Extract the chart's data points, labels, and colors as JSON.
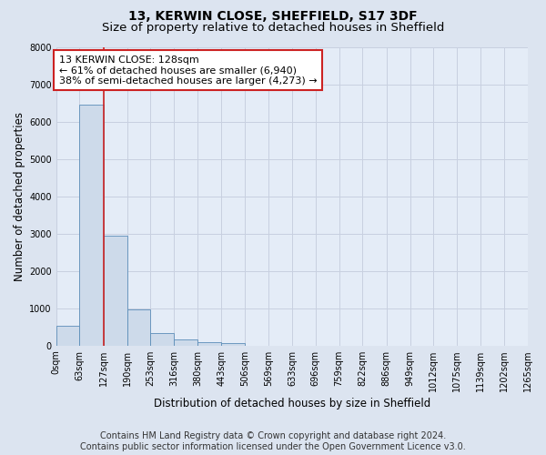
{
  "title": "13, KERWIN CLOSE, SHEFFIELD, S17 3DF",
  "subtitle": "Size of property relative to detached houses in Sheffield",
  "xlabel": "Distribution of detached houses by size in Sheffield",
  "ylabel": "Number of detached properties",
  "bar_color": "#cddaea",
  "bar_edge_color": "#5b8db8",
  "marker_color": "#cc2222",
  "marker_value": 128,
  "annotation_line1": "13 KERWIN CLOSE: 128sqm",
  "annotation_line2": "← 61% of detached houses are smaller (6,940)",
  "annotation_line3": "38% of semi-detached houses are larger (4,273) →",
  "bins": [
    0,
    63,
    127,
    190,
    253,
    316,
    380,
    443,
    506,
    569,
    633,
    696,
    759,
    822,
    886,
    949,
    1012,
    1075,
    1139,
    1202,
    1265
  ],
  "bar_heights": [
    530,
    6450,
    2950,
    970,
    340,
    165,
    100,
    65,
    0,
    0,
    0,
    0,
    0,
    0,
    0,
    0,
    0,
    0,
    0,
    0
  ],
  "ylim": [
    0,
    8000
  ],
  "yticks": [
    0,
    1000,
    2000,
    3000,
    4000,
    5000,
    6000,
    7000,
    8000
  ],
  "footer_line1": "Contains HM Land Registry data © Crown copyright and database right 2024.",
  "footer_line2": "Contains public sector information licensed under the Open Government Licence v3.0.",
  "fig_bg_color": "#dce4f0",
  "plot_bg_color": "#e4ecf7",
  "grid_color": "#c8d0e0",
  "annotation_box_bg": "#ffffff",
  "annotation_box_edge": "#cc2222",
  "title_fontsize": 10,
  "subtitle_fontsize": 9.5,
  "axis_label_fontsize": 8.5,
  "tick_fontsize": 7,
  "annotation_fontsize": 8,
  "footer_fontsize": 7
}
